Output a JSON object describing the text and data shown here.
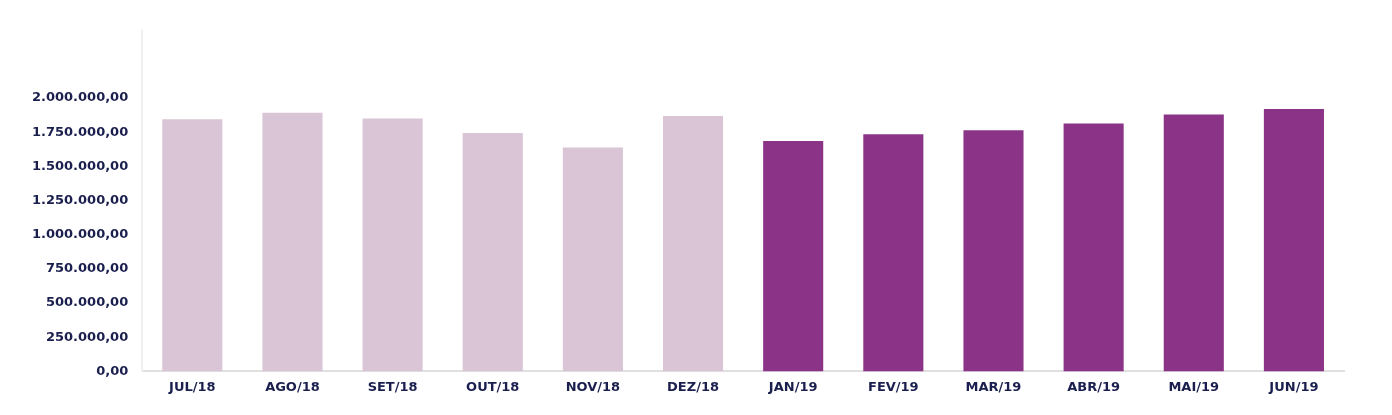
{
  "chart_data": {
    "type": "bar",
    "categories": [
      "JUL/18",
      "AGO/18",
      "SET/18",
      "OUT/18",
      "NOV/18",
      "DEZ/18",
      "JAN/19",
      "FEV/19",
      "MAR/19",
      "ABR/19",
      "MAI/19",
      "JUN/19"
    ],
    "values": [
      1845000,
      1893000,
      1851000,
      1745000,
      1638000,
      1869000,
      1686000,
      1735000,
      1765000,
      1814000,
      1881000,
      1921000
    ],
    "colors": [
      "#d9c5d5",
      "#d9c5d5",
      "#d9c5d5",
      "#d9c5d5",
      "#d9c5d5",
      "#d9c5d5",
      "#8b3487",
      "#8b3487",
      "#8b3487",
      "#8b3487",
      "#8b3487",
      "#8b3487"
    ],
    "ylim": [
      0,
      2500000
    ],
    "yticks": [
      {
        "value": 0,
        "label": "0,00"
      },
      {
        "value": 250000,
        "label": "250.000,00"
      },
      {
        "value": 500000,
        "label": "500.000,00"
      },
      {
        "value": 750000,
        "label": "750.000,00"
      },
      {
        "value": 1000000,
        "label": "1.000.000,00"
      },
      {
        "value": 1250000,
        "label": "1.250.000,00"
      },
      {
        "value": 1500000,
        "label": "1.500.000,00"
      },
      {
        "value": 1750000,
        "label": "1.750.000,00"
      },
      {
        "value": 2000000,
        "label": "2.000.000,00"
      }
    ],
    "grid": false,
    "legend": false
  }
}
